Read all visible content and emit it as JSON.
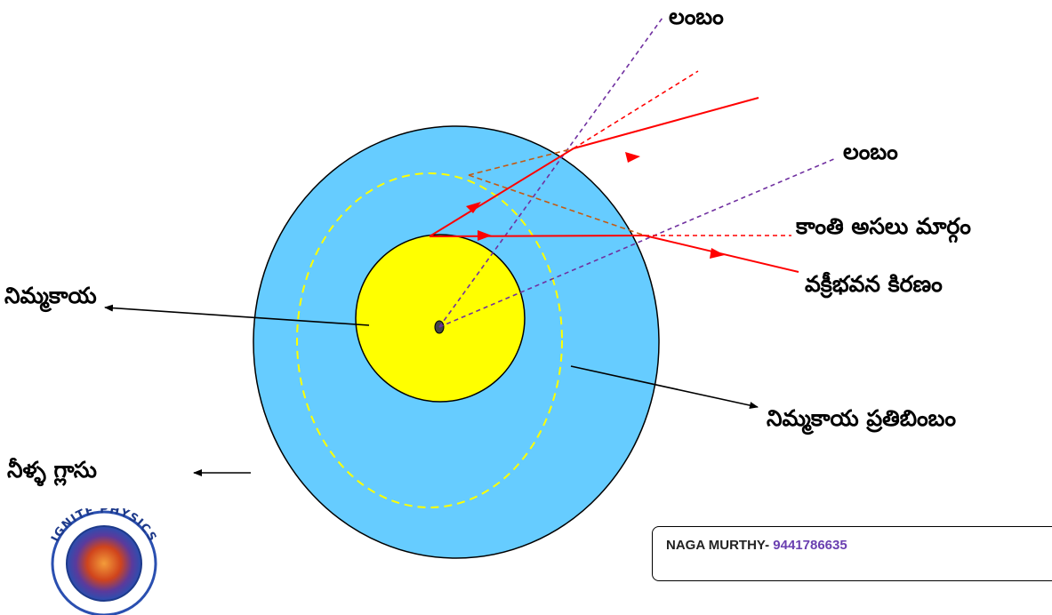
{
  "labels": {
    "normal_top": "లంబం",
    "normal_mid": "లంబం",
    "original_path": "కాంతి అసలు మార్గం",
    "refracted_ray": "వక్రీభవన కిరణం",
    "lemon": "నిమ్మకాయ",
    "lemon_image": "నిమ్మకాయ ప్రతిబింబం",
    "water_glass": "నీళ్ళ గ్లాసు"
  },
  "credit": {
    "name": "NAGA MURTHY-",
    "phone": " 9441786635"
  },
  "logo": {
    "text": "IGNITE PHYSICS"
  },
  "colors": {
    "water": "#66ccff",
    "lemon": "#ffff00",
    "ray": "#ff0000",
    "normal": "#7030a0",
    "image_outline": "#ffff00",
    "virtual_ray": "#c55a11"
  }
}
